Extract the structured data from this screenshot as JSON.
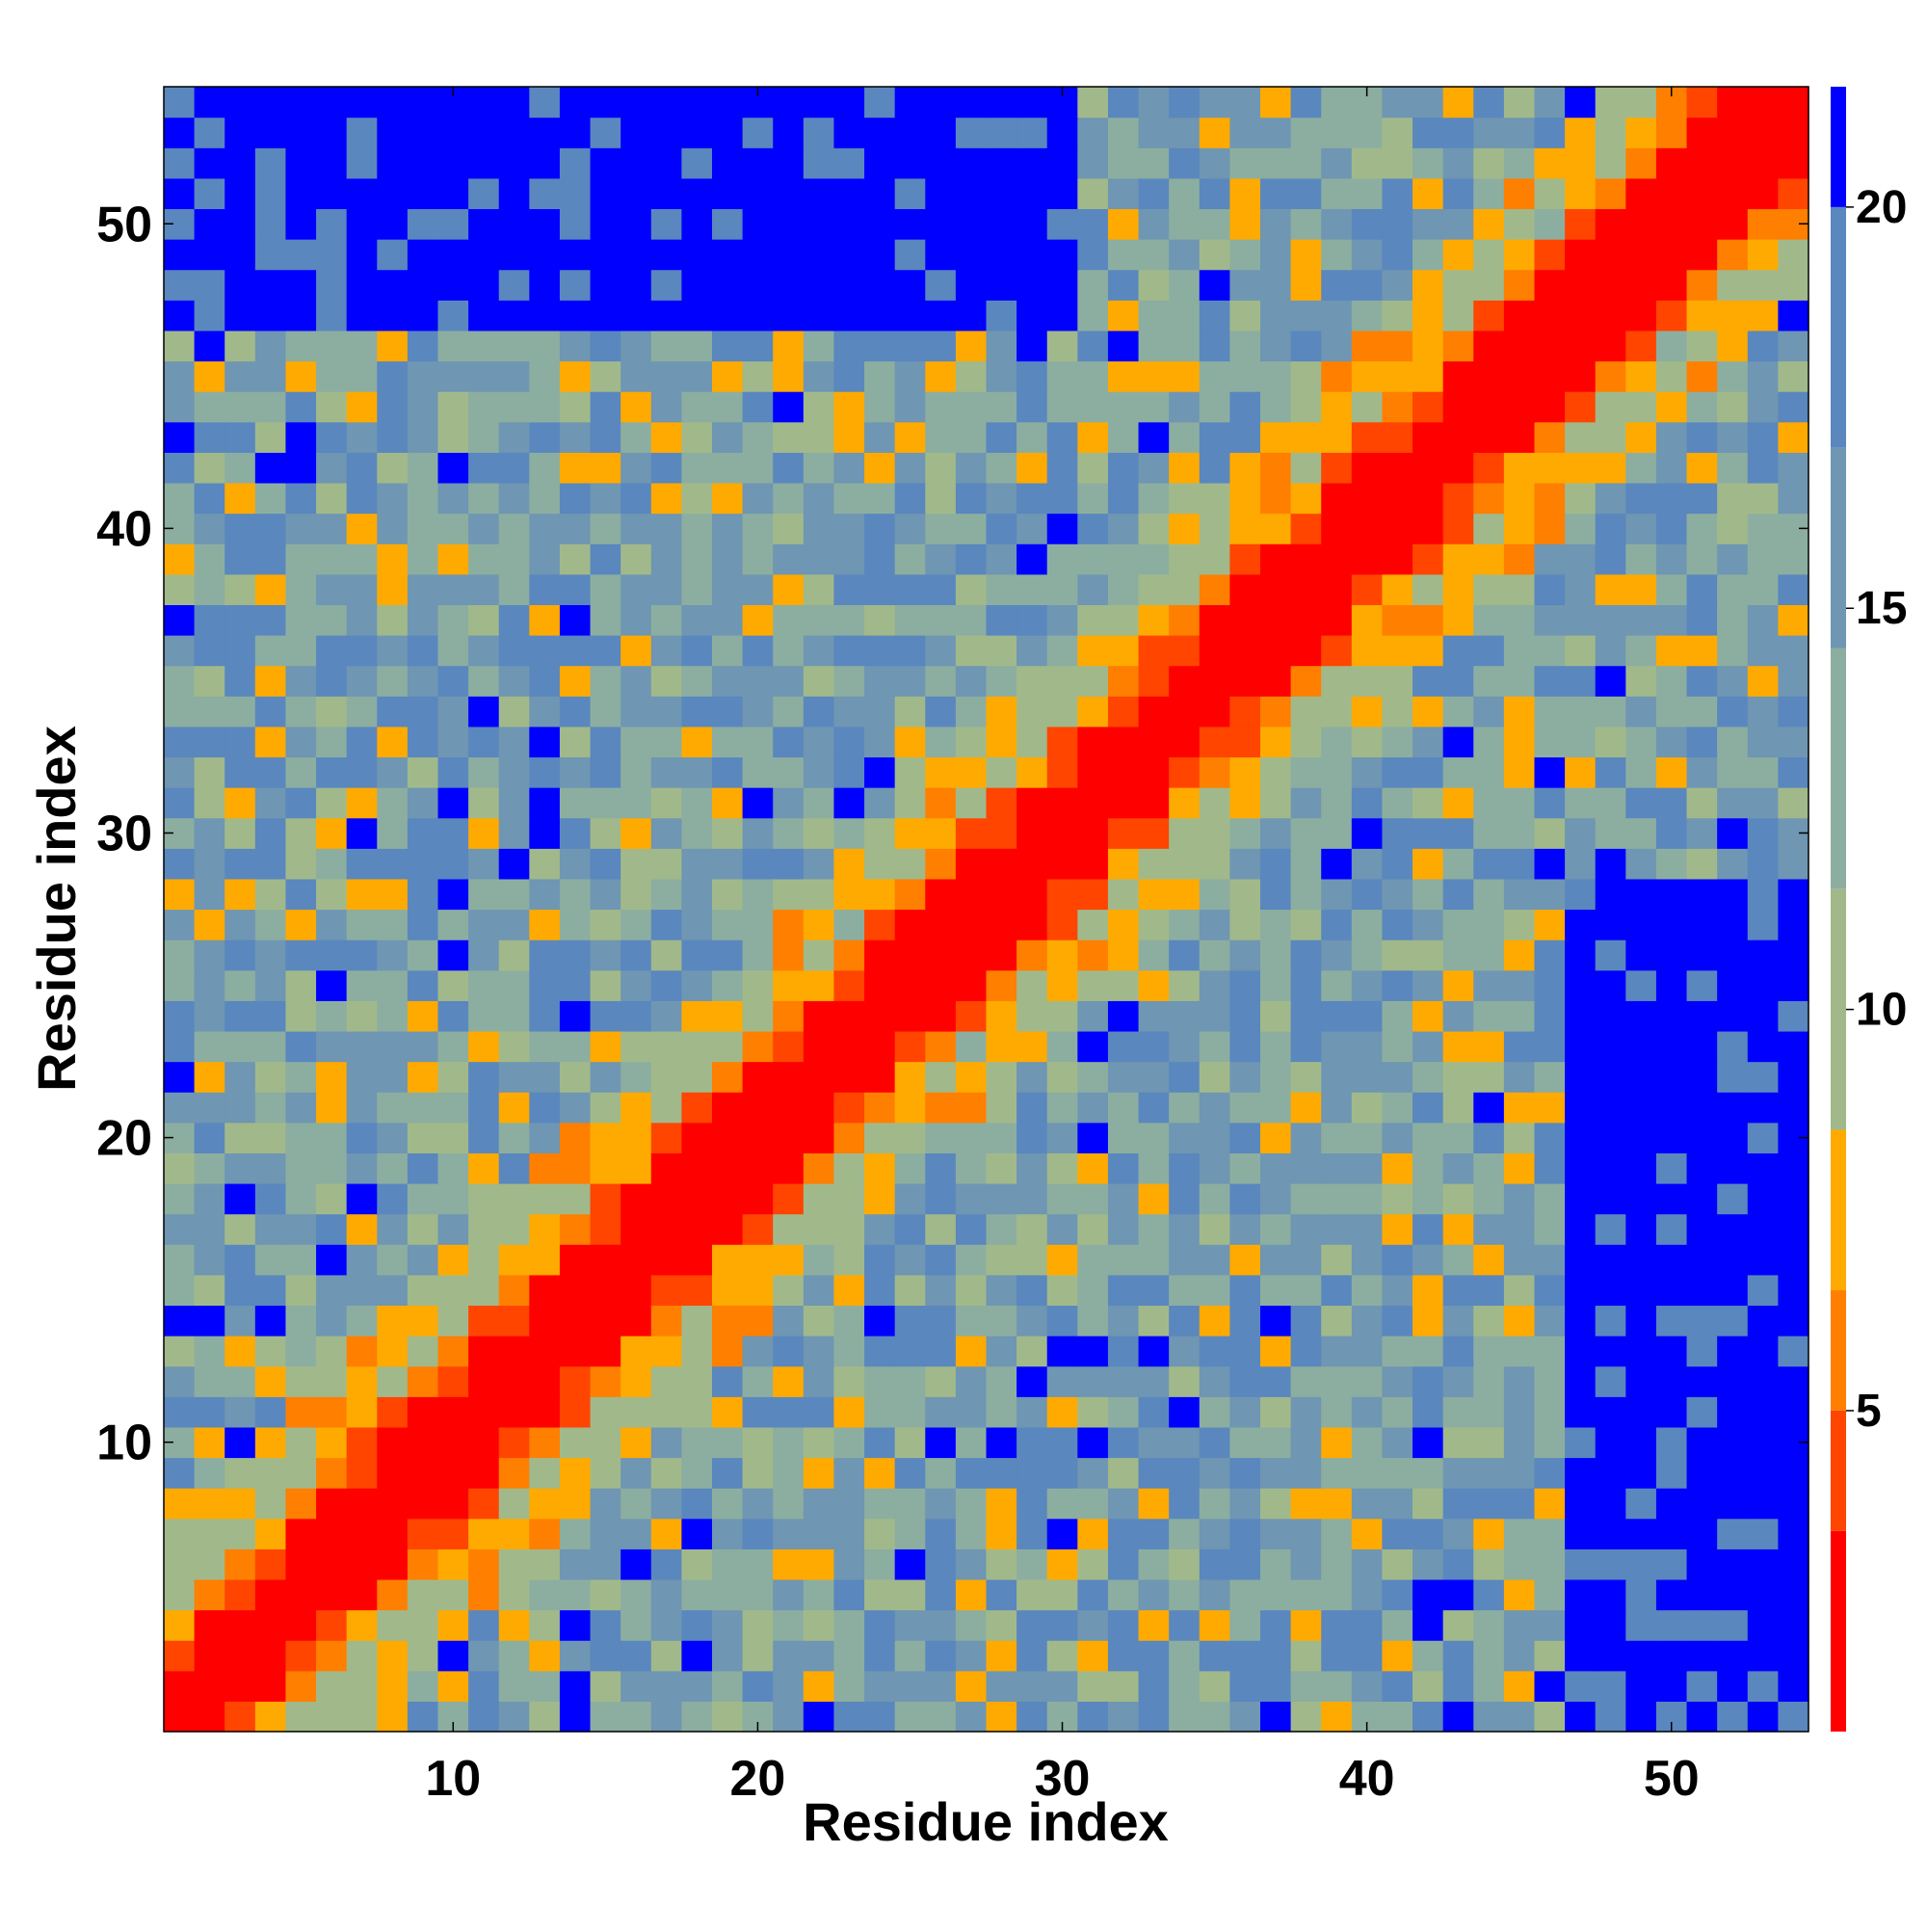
{
  "chart_data": {
    "type": "heatmap",
    "title": "",
    "xlabel": "Residue index",
    "ylabel": "Residue index",
    "n_residues": 54,
    "xlim": [
      0.5,
      54.5
    ],
    "ylim": [
      0.5,
      54.5
    ],
    "x_ticks": [
      10,
      20,
      30,
      40,
      50
    ],
    "y_ticks": [
      10,
      20,
      30,
      40,
      50
    ],
    "grid": false,
    "symmetric": true,
    "colorbar": {
      "range": [
        1,
        21.5
      ],
      "ticks": [
        5,
        10,
        15,
        20
      ],
      "bands": [
        {
          "from": 1,
          "to": 3.5,
          "color": "#ff0000"
        },
        {
          "from": 3.5,
          "to": 5,
          "color": "#ff4500"
        },
        {
          "from": 5,
          "to": 6.5,
          "color": "#ff7f00"
        },
        {
          "from": 6.5,
          "to": 8.5,
          "color": "#ffaa00"
        },
        {
          "from": 8.5,
          "to": 11.5,
          "color": "#a1b98a"
        },
        {
          "from": 11.5,
          "to": 14.5,
          "color": "#8caea0"
        },
        {
          "from": 14.5,
          "to": 17,
          "color": "#6f96b2"
        },
        {
          "from": 17,
          "to": 20,
          "color": "#5a87be"
        },
        {
          "from": 20,
          "to": 21.5,
          "color": "#0000ff"
        }
      ]
    },
    "description": "Symmetric residue-residue distance map; red main diagonal band (near contacts), orange secondary contacts near diagonal, far regions blue.",
    "far_regions": [
      {
        "rows": [
          47,
          54
        ],
        "cols": [
          1,
          30
        ]
      },
      {
        "rows": [
          1,
          28
        ],
        "cols": [
          47,
          54
        ]
      }
    ]
  }
}
